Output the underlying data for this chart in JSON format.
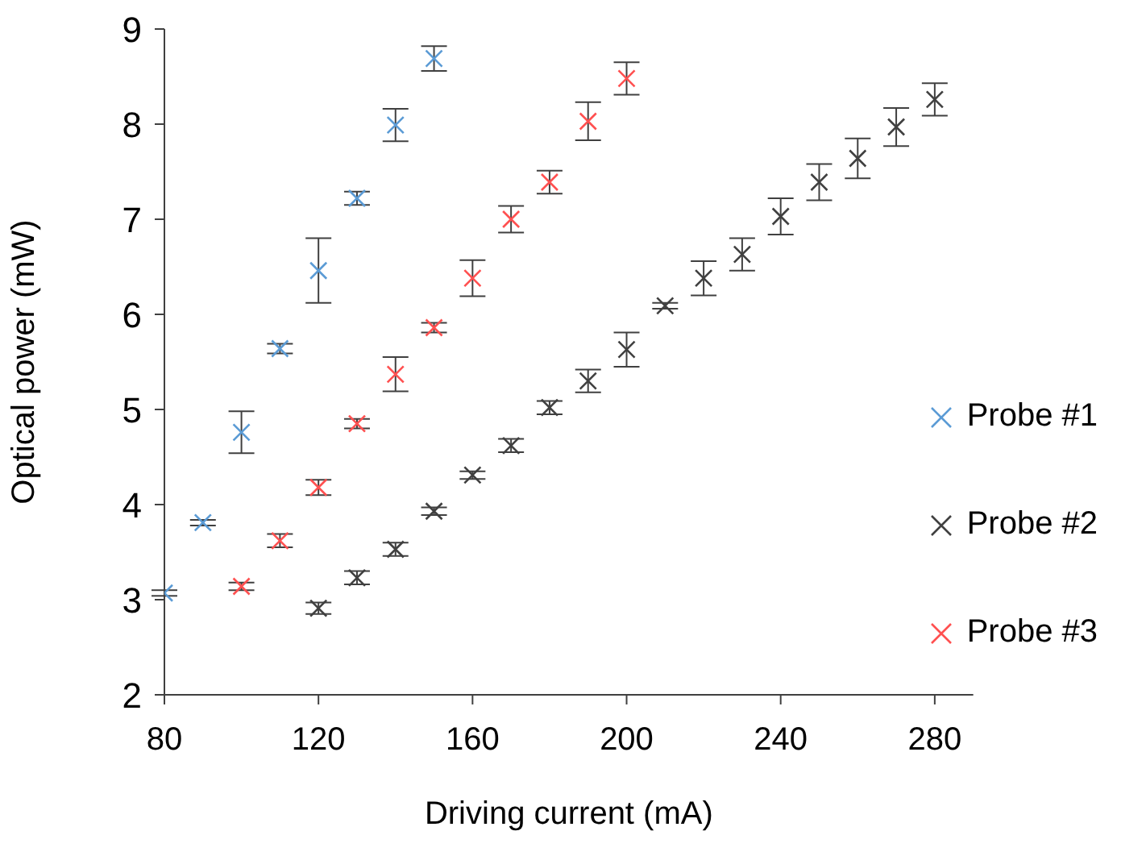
{
  "chart_data": {
    "type": "scatter",
    "xlabel": "Driving current (mA)",
    "ylabel": "Optical power (mW)",
    "xlim": [
      80,
      290
    ],
    "xticks": [
      80,
      120,
      160,
      200,
      240,
      280
    ],
    "ylim": [
      2,
      9
    ],
    "yticks": [
      2,
      3,
      4,
      5,
      6,
      7,
      8,
      9
    ],
    "marker": "cross",
    "legend": "right",
    "series": [
      {
        "name": "Probe #1",
        "color": "#5b9bd5",
        "x": [
          80,
          90,
          100,
          110,
          120,
          130,
          140,
          150
        ],
        "values": [
          3.07,
          3.81,
          4.76,
          5.64,
          6.46,
          7.22,
          7.99,
          8.69
        ],
        "errors": [
          0.03,
          0.03,
          0.22,
          0.05,
          0.34,
          0.07,
          0.17,
          0.13
        ]
      },
      {
        "name": "Probe #2",
        "color": "#404040",
        "x": [
          120,
          130,
          140,
          150,
          160,
          170,
          180,
          190,
          200,
          210,
          220,
          230,
          240,
          250,
          260,
          270,
          280
        ],
        "values": [
          2.91,
          3.23,
          3.53,
          3.93,
          4.31,
          4.62,
          5.02,
          5.3,
          5.63,
          6.09,
          6.38,
          6.63,
          7.03,
          7.39,
          7.64,
          7.97,
          8.26
        ],
        "errors": [
          0.06,
          0.07,
          0.07,
          0.04,
          0.04,
          0.07,
          0.07,
          0.12,
          0.18,
          0.03,
          0.18,
          0.17,
          0.19,
          0.19,
          0.21,
          0.2,
          0.17
        ]
      },
      {
        "name": "Probe #3",
        "color": "#ff5050",
        "x": [
          100,
          110,
          120,
          130,
          140,
          150,
          160,
          170,
          180,
          190,
          200
        ],
        "values": [
          3.14,
          3.62,
          4.18,
          4.85,
          5.37,
          5.86,
          6.38,
          7.0,
          7.39,
          8.03,
          8.48
        ],
        "errors": [
          0.04,
          0.07,
          0.08,
          0.05,
          0.18,
          0.05,
          0.19,
          0.14,
          0.12,
          0.2,
          0.17
        ]
      }
    ]
  }
}
